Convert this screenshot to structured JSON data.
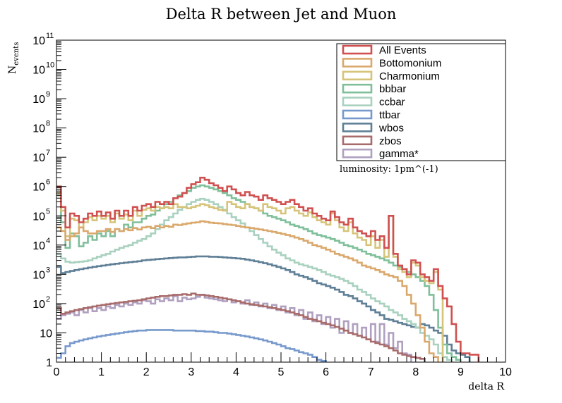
{
  "chart_data": {
    "type": "line",
    "title": "Delta R between Jet and Muon",
    "xlabel": "delta R",
    "ylabel": "N",
    "ylabel_sub": "events",
    "xlim": [
      0,
      10
    ],
    "ylim": [
      1,
      100000000000
    ],
    "yscale": "log",
    "xticks": [
      "0",
      "1",
      "2",
      "3",
      "4",
      "5",
      "6",
      "7",
      "8",
      "9",
      "10"
    ],
    "yticks": [
      {
        "base": "1",
        "exp": ""
      },
      {
        "base": "10",
        "exp": ""
      },
      {
        "base": "10",
        "exp": "2"
      },
      {
        "base": "10",
        "exp": "3"
      },
      {
        "base": "10",
        "exp": "4"
      },
      {
        "base": "10",
        "exp": "5"
      },
      {
        "base": "10",
        "exp": "6"
      },
      {
        "base": "10",
        "exp": "7"
      },
      {
        "base": "10",
        "exp": "8"
      },
      {
        "base": "10",
        "exp": "9"
      },
      {
        "base": "10",
        "exp": "10"
      },
      {
        "base": "10",
        "exp": "11"
      }
    ],
    "legend_position": "top-right",
    "annotation": "luminosity: 1pm^(-1)",
    "x": [
      0.05,
      0.15,
      0.25,
      0.35,
      0.45,
      0.55,
      0.65,
      0.75,
      0.85,
      0.95,
      1.05,
      1.15,
      1.25,
      1.35,
      1.45,
      1.55,
      1.65,
      1.75,
      1.85,
      1.95,
      2.05,
      2.15,
      2.25,
      2.35,
      2.45,
      2.55,
      2.65,
      2.75,
      2.85,
      2.95,
      3.05,
      3.15,
      3.25,
      3.35,
      3.45,
      3.55,
      3.65,
      3.75,
      3.85,
      3.95,
      4.05,
      4.15,
      4.25,
      4.35,
      4.45,
      4.55,
      4.65,
      4.75,
      4.85,
      4.95,
      5.05,
      5.15,
      5.25,
      5.35,
      5.45,
      5.55,
      5.65,
      5.75,
      5.85,
      5.95,
      6.05,
      6.15,
      6.25,
      6.35,
      6.45,
      6.55,
      6.65,
      6.75,
      6.85,
      6.95,
      7.05,
      7.15,
      7.25,
      7.35,
      7.45,
      7.55,
      7.65,
      7.75,
      7.85,
      7.95,
      8.05,
      8.15,
      8.25,
      8.35,
      8.45,
      8.55,
      8.65,
      8.75,
      8.85,
      8.95,
      9.05,
      9.15,
      9.25,
      9.35,
      9.45,
      9.55,
      9.65,
      9.75,
      9.85,
      9.95
    ],
    "series": [
      {
        "name": "All Events",
        "color": "#d05050",
        "values": [
          1000000,
          200000,
          40000,
          120000,
          100000,
          60000,
          80000,
          120000,
          100000,
          140000,
          100000,
          130000,
          80000,
          150000,
          100000,
          150000,
          100000,
          200000,
          150000,
          220000,
          250000,
          200000,
          300000,
          250000,
          300000,
          250000,
          400000,
          450000,
          600000,
          900000,
          1200000,
          1400000,
          2000000,
          1700000,
          1300000,
          1100000,
          900000,
          700000,
          1000000,
          800000,
          600000,
          500000,
          650000,
          500000,
          450000,
          350000,
          500000,
          400000,
          350000,
          300000,
          250000,
          300000,
          350000,
          250000,
          200000,
          150000,
          180000,
          120000,
          100000,
          80000,
          70000,
          140000,
          90000,
          60000,
          50000,
          80000,
          40000,
          30000,
          25000,
          20000,
          30000,
          15000,
          20000,
          8000,
          100000,
          5000,
          2000,
          1500,
          1000,
          3000,
          2500,
          1000,
          800,
          600,
          1500,
          400,
          150,
          80,
          20,
          5,
          2,
          2,
          1.8,
          1.8,
          0,
          0,
          0,
          0,
          0,
          0
        ]
      },
      {
        "name": "Bottomonium",
        "color": "#daa86c",
        "values": [
          40000,
          30000,
          15000,
          20000,
          25000,
          40000,
          30000,
          25000,
          25000,
          30000,
          30000,
          35000,
          28000,
          35000,
          30000,
          35000,
          32000,
          38000,
          34000,
          40000,
          42000,
          38000,
          45000,
          40000,
          45000,
          42000,
          50000,
          48000,
          52000,
          55000,
          58000,
          60000,
          65000,
          62000,
          58000,
          56000,
          55000,
          52000,
          50000,
          48000,
          45000,
          42000,
          40000,
          38000,
          36000,
          34000,
          32000,
          30000,
          28000,
          26000,
          24000,
          22000,
          20000,
          18000,
          16000,
          14000,
          12000,
          10000,
          9000,
          8000,
          7000,
          6000,
          5000,
          4500,
          4000,
          3500,
          3000,
          2500,
          2000,
          1800,
          1600,
          1400,
          1200,
          1000,
          900,
          800,
          600,
          400,
          200,
          100,
          40,
          15,
          5,
          2,
          1.5,
          0,
          0,
          0,
          0,
          0,
          0,
          0,
          0,
          0,
          0,
          0,
          0,
          0,
          0,
          0
        ]
      },
      {
        "name": "Charmonium",
        "color": "#d6c47a",
        "values": [
          600000,
          150000,
          20000,
          80000,
          70000,
          40000,
          60000,
          90000,
          70000,
          100000,
          80000,
          100000,
          60000,
          120000,
          80000,
          110000,
          70000,
          150000,
          100000,
          160000,
          180000,
          150000,
          200000,
          180000,
          200000,
          180000,
          250000,
          200000,
          200000,
          180000,
          200000,
          220000,
          250000,
          230000,
          200000,
          180000,
          160000,
          150000,
          300000,
          250000,
          200000,
          180000,
          250000,
          200000,
          180000,
          150000,
          250000,
          200000,
          180000,
          150000,
          120000,
          180000,
          200000,
          150000,
          120000,
          100000,
          130000,
          90000,
          70000,
          60000,
          50000,
          120000,
          70000,
          40000,
          30000,
          60000,
          25000,
          18000,
          15000,
          10000,
          20000,
          8000,
          15000,
          4000,
          100000,
          4000,
          1500,
          1200,
          800,
          2500,
          2000,
          800,
          600,
          500,
          1200,
          300,
          0,
          0,
          0,
          0,
          0,
          0,
          0,
          0,
          0,
          0,
          0,
          0,
          0,
          0
        ]
      },
      {
        "name": "bbbar",
        "color": "#7fbf9a",
        "values": [
          500000,
          60000,
          8000,
          25000,
          20000,
          9000,
          12000,
          20000,
          15000,
          25000,
          20000,
          30000,
          20000,
          35000,
          30000,
          50000,
          40000,
          60000,
          60000,
          80000,
          100000,
          110000,
          150000,
          180000,
          250000,
          300000,
          400000,
          500000,
          600000,
          700000,
          900000,
          1000000,
          1100000,
          1000000,
          900000,
          800000,
          700000,
          600000,
          500000,
          400000,
          350000,
          300000,
          250000,
          200000,
          180000,
          150000,
          120000,
          100000,
          90000,
          80000,
          70000,
          60000,
          50000,
          45000,
          40000,
          35000,
          30000,
          25000,
          22000,
          20000,
          18000,
          16000,
          14000,
          12000,
          10000,
          9000,
          8000,
          7000,
          6000,
          5000,
          4500,
          4000,
          3500,
          3000,
          2500,
          2000,
          1800,
          1500,
          1200,
          1000,
          800,
          600,
          400,
          200,
          60,
          15,
          4,
          2,
          1.5,
          1.2,
          0,
          0,
          0,
          0,
          0,
          0,
          0,
          0,
          0,
          0
        ]
      },
      {
        "name": "ccbar",
        "color": "#a9d1bf",
        "values": [
          5000,
          3500,
          2700,
          2500,
          2600,
          2700,
          2800,
          3000,
          3500,
          4000,
          4500,
          5000,
          6000,
          7000,
          8000,
          9000,
          10000,
          12000,
          14000,
          16000,
          20000,
          25000,
          35000,
          50000,
          70000,
          90000,
          120000,
          160000,
          200000,
          250000,
          300000,
          350000,
          380000,
          350000,
          300000,
          250000,
          200000,
          160000,
          120000,
          90000,
          70000,
          55000,
          40000,
          30000,
          22000,
          16000,
          12000,
          9000,
          7000,
          5500,
          4500,
          3500,
          3000,
          2500,
          2200,
          2000,
          1800,
          1600,
          1400,
          1200,
          1000,
          900,
          800,
          700,
          600,
          500,
          400,
          300,
          250,
          200,
          150,
          120,
          100,
          80,
          60,
          50,
          40,
          30,
          25,
          20,
          15,
          10,
          8,
          6,
          4,
          2,
          1.5,
          1.2,
          0,
          0,
          0,
          0,
          0,
          0,
          0,
          0,
          0,
          0,
          0,
          0
        ]
      },
      {
        "name": "ttbar",
        "color": "#7799cc",
        "values": [
          1.4,
          2,
          3.5,
          4.5,
          5,
          5.5,
          6,
          6.5,
          7,
          7.5,
          8,
          8.5,
          9,
          9.5,
          10,
          10.5,
          11,
          11.5,
          12,
          12,
          12.5,
          12.5,
          12.5,
          12.5,
          12.5,
          12.5,
          12,
          12,
          12,
          12,
          12,
          11.5,
          11.5,
          11,
          11,
          10.5,
          10,
          10,
          9.5,
          9,
          8.5,
          8,
          7.5,
          7,
          6.5,
          6,
          5.5,
          5,
          4.5,
          4,
          3.5,
          3,
          2.8,
          2.5,
          2.2,
          2,
          1.8,
          1.5,
          1.2,
          1.1,
          0,
          0,
          0,
          0,
          0,
          0,
          0,
          0,
          0,
          0,
          0,
          0,
          0,
          0,
          0,
          0,
          0,
          0,
          0,
          0,
          0,
          0,
          0,
          0,
          0,
          0,
          0,
          0,
          0,
          0,
          0,
          0,
          0,
          0,
          0,
          0,
          0,
          0,
          0,
          0
        ]
      },
      {
        "name": "wbos",
        "color": "#5f7f96",
        "values": [
          1800,
          1100,
          1200,
          1300,
          1400,
          1500,
          1600,
          1700,
          1800,
          1900,
          2000,
          2100,
          2200,
          2300,
          2400,
          2500,
          2600,
          2700,
          2800,
          3000,
          3100,
          3200,
          3300,
          3400,
          3500,
          3600,
          3700,
          3800,
          3800,
          3900,
          4000,
          4100,
          4100,
          4100,
          4000,
          4000,
          3900,
          3800,
          3700,
          3600,
          3500,
          3400,
          3200,
          3000,
          2800,
          2600,
          2400,
          2200,
          2000,
          1800,
          1600,
          1400,
          1200,
          1000,
          900,
          800,
          700,
          600,
          500,
          450,
          400,
          350,
          300,
          250,
          200,
          180,
          150,
          120,
          100,
          80,
          60,
          50,
          40,
          30,
          28,
          25,
          22,
          20,
          18,
          16,
          15,
          20,
          18,
          15,
          12,
          10,
          8,
          4,
          2.5,
          2,
          1.8,
          1.5,
          0,
          0,
          0,
          0,
          0,
          0,
          0,
          0
        ]
      },
      {
        "name": "zbos",
        "color": "#a86b6b",
        "values": [
          70,
          45,
          50,
          55,
          60,
          65,
          70,
          75,
          80,
          85,
          90,
          95,
          100,
          105,
          110,
          115,
          120,
          125,
          130,
          140,
          150,
          160,
          170,
          180,
          180,
          190,
          200,
          200,
          210,
          200,
          220,
          200,
          200,
          190,
          180,
          170,
          160,
          150,
          140,
          130,
          120,
          110,
          100,
          95,
          90,
          85,
          80,
          75,
          70,
          65,
          60,
          55,
          50,
          45,
          40,
          35,
          30,
          28,
          25,
          22,
          20,
          18,
          16,
          14,
          12,
          10,
          9,
          8,
          7,
          6,
          5,
          4.5,
          4,
          3.5,
          3,
          2.5,
          2,
          1.8,
          1.6,
          1.5,
          1.4,
          1.3,
          0,
          0,
          0,
          0,
          0,
          0,
          0,
          0,
          0,
          0,
          0,
          0,
          0,
          0,
          0,
          0,
          0,
          0
        ]
      },
      {
        "name": "gamma*",
        "color": "#b0a0c0",
        "values": [
          30,
          40,
          45,
          50,
          40,
          60,
          50,
          70,
          55,
          70,
          60,
          80,
          70,
          90,
          80,
          100,
          90,
          110,
          100,
          130,
          120,
          100,
          140,
          120,
          150,
          130,
          180,
          120,
          160,
          140,
          150,
          170,
          200,
          160,
          150,
          140,
          130,
          120,
          140,
          110,
          120,
          100,
          130,
          90,
          110,
          80,
          100,
          70,
          90,
          60,
          80,
          50,
          70,
          40,
          60,
          30,
          50,
          25,
          40,
          20,
          35,
          15,
          30,
          10,
          25,
          10,
          20,
          8,
          15,
          6,
          20,
          5,
          20,
          4,
          10,
          3,
          5,
          2,
          1.8,
          0,
          0,
          0,
          0,
          0,
          0,
          0,
          0,
          0,
          0,
          0,
          0,
          0,
          0,
          0,
          0,
          0,
          0,
          0,
          0,
          0
        ]
      }
    ]
  }
}
